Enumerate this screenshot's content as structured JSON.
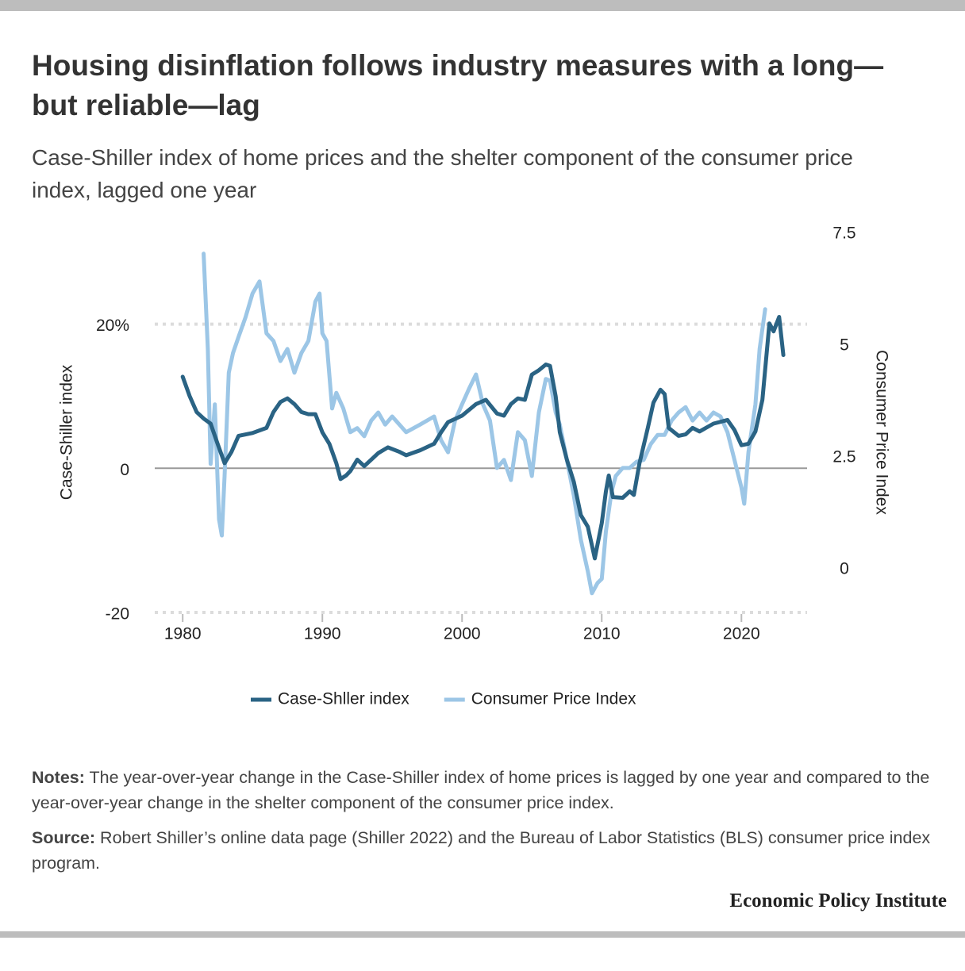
{
  "chart_data": {
    "type": "line",
    "title": "Housing disinflation follows industry measures with a long—but reliable—lag",
    "subtitle": "Case-Shiller index of home prices and the shelter component of the consumer price index, lagged one year",
    "y_label": "Case-Shiller index",
    "y2_label": "Consumer Price Index",
    "xlim": [
      1978,
      2024.7
    ],
    "xticks": [
      1980,
      1990,
      2000,
      2010,
      2020
    ],
    "ylim": [
      -20,
      32.5
    ],
    "yticks": [
      -20,
      0,
      {
        "value": 20,
        "label": "20%"
      }
    ],
    "y2lim": [
      -0.96,
      7.5
    ],
    "y2ticks": [
      0,
      2.5,
      5,
      7.5
    ],
    "grid": true,
    "legend": "bottom",
    "series": [
      {
        "name": "Case-Shller index",
        "color": "#2a6384",
        "x": [
          1980,
          1980.5,
          1981,
          1981.5,
          1982,
          1982.5,
          1983,
          1983.5,
          1984,
          1985,
          1986,
          1986.5,
          1987,
          1987.5,
          1988,
          1988.5,
          1989,
          1989.5,
          1990,
          1990.5,
          1991,
          1991.3,
          1991.7,
          1992,
          1992.5,
          1993,
          1993.5,
          1994,
          1994.7,
          1995.5,
          1996,
          1997,
          1998,
          1998.5,
          1999,
          2000,
          2001,
          2001.7,
          2002.5,
          2003,
          2003.5,
          2004,
          2004.5,
          2005,
          2005.5,
          2006,
          2006.3,
          2006.7,
          2007,
          2007.5,
          2008,
          2008.5,
          2009,
          2009.5,
          2010,
          2010.3,
          2010.5,
          2010.8,
          2011.5,
          2012,
          2012.3,
          2012.7,
          2013.3,
          2013.7,
          2014.2,
          2014.5,
          2014.8,
          2015.5,
          2016,
          2016.5,
          2017,
          2018,
          2019,
          2019.5,
          2020,
          2020.5,
          2021,
          2021.5,
          2022,
          2022.3,
          2022.7,
          2023
        ],
        "values": [
          12.7,
          10,
          7.8,
          6.9,
          6.2,
          3.4,
          0.7,
          2.3,
          4.5,
          4.9,
          5.6,
          7.8,
          9.2,
          9.7,
          8.9,
          7.8,
          7.5,
          7.5,
          5,
          3.4,
          0.7,
          -1.5,
          -1,
          -0.4,
          1.2,
          0.3,
          1.2,
          2.1,
          2.9,
          2.3,
          1.8,
          2.5,
          3.4,
          5,
          6.4,
          7.3,
          8.9,
          9.5,
          7.6,
          7.3,
          8.9,
          9.7,
          9.5,
          13,
          13.6,
          14.4,
          14.2,
          10,
          5,
          1.2,
          -1.9,
          -6.5,
          -8.1,
          -12.5,
          -7.6,
          -3.2,
          -1,
          -4,
          -4.1,
          -3.2,
          -3.7,
          0.7,
          5.6,
          9.1,
          10.9,
          10.3,
          5.6,
          4.5,
          4.7,
          5.6,
          5.1,
          6.2,
          6.7,
          5.3,
          3.2,
          3.4,
          5.1,
          9.5,
          20.1,
          19,
          21,
          15.7
        ]
      },
      {
        "name": "Consumer Price Index",
        "color": "#9cc6e6",
        "axis": "y2",
        "x": [
          1981.5,
          1981.8,
          1982,
          1982.3,
          1982.6,
          1982.8,
          1983,
          1983.3,
          1983.6,
          1984,
          1984.5,
          1985,
          1985.5,
          1986,
          1986.5,
          1987,
          1987.5,
          1988,
          1988.5,
          1989,
          1989.5,
          1989.8,
          1990,
          1990.3,
          1990.7,
          1991,
          1991.5,
          1992,
          1992.5,
          1993,
          1993.5,
          1994,
          1994.5,
          1995,
          1996,
          1997,
          1998,
          1998.5,
          1999,
          1999.5,
          2000,
          2000.5,
          2001,
          2001.5,
          2002,
          2002.5,
          2003,
          2003.5,
          2004,
          2004.5,
          2005,
          2005.5,
          2006,
          2006.3,
          2006.7,
          2007,
          2007.5,
          2008,
          2008.5,
          2009,
          2009.3,
          2009.7,
          2010,
          2010.3,
          2010.7,
          2011,
          2011.5,
          2012,
          2012.5,
          2013,
          2013.5,
          2014,
          2014.5,
          2015,
          2015.5,
          2016,
          2016.5,
          2017,
          2017.5,
          2018,
          2018.5,
          2019,
          2019.5,
          2020,
          2020.2,
          2020.5,
          2021,
          2021.3,
          2021.7
        ],
        "values": [
          7.06,
          4.93,
          2.36,
          3.69,
          1.12,
          0.76,
          2.09,
          4.4,
          4.84,
          5.2,
          5.64,
          6.17,
          6.44,
          5.28,
          5.11,
          4.66,
          4.93,
          4.4,
          4.84,
          5.11,
          5.99,
          6.17,
          5.28,
          5.11,
          3.6,
          3.95,
          3.6,
          3.07,
          3.16,
          2.98,
          3.33,
          3.51,
          3.24,
          3.42,
          3.07,
          3.24,
          3.42,
          2.89,
          2.62,
          3.33,
          3.69,
          4.04,
          4.36,
          3.69,
          3.33,
          2.27,
          2.45,
          2.0,
          3.07,
          2.89,
          2.09,
          3.51,
          4.26,
          4.22,
          3.51,
          3.24,
          2.45,
          1.65,
          0.67,
          -0.04,
          -0.53,
          -0.3,
          -0.21,
          0.85,
          1.74,
          2.09,
          2.27,
          2.27,
          2.41,
          2.45,
          2.8,
          3.01,
          3.01,
          3.33,
          3.51,
          3.63,
          3.33,
          3.51,
          3.33,
          3.51,
          3.42,
          3.07,
          2.45,
          1.83,
          1.47,
          2.62,
          3.69,
          4.93,
          5.82
        ]
      }
    ]
  },
  "notes": {
    "label": "Notes:",
    "text": "The year-over-year change in the Case-Shiller index of home prices is lagged by one year and compared to the year-over-year change in the shelter component of the consumer price index."
  },
  "source": {
    "label": "Source:",
    "text": "Robert Shiller’s online data page (Shiller 2022) and the Bureau of Labor Statistics (BLS) consumer price index program."
  },
  "branding": "Economic Policy Institute"
}
